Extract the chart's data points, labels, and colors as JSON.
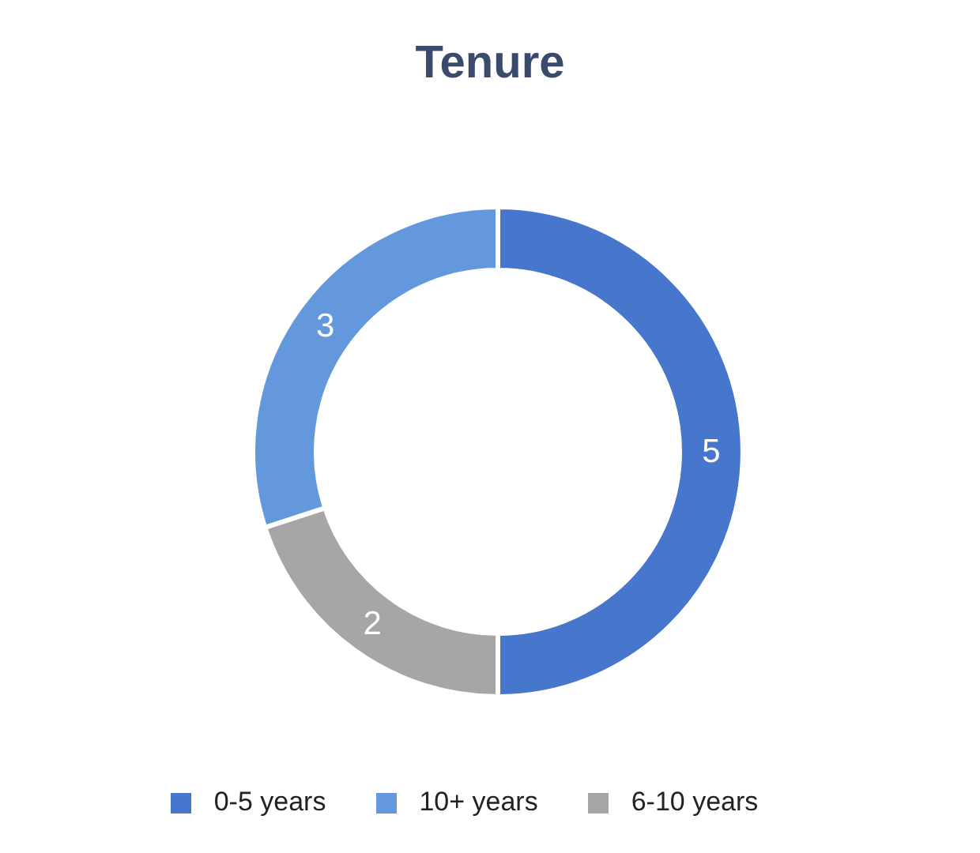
{
  "chart_data": {
    "type": "donut",
    "title": "Tenure",
    "categories": [
      "0-5 years",
      "6-10 years",
      "10+ years"
    ],
    "values": [
      5,
      2,
      3
    ],
    "colors": [
      "#4677cc",
      "#a6a6a6",
      "#6399dc"
    ],
    "data_labels": true,
    "legend": "bottom"
  }
}
